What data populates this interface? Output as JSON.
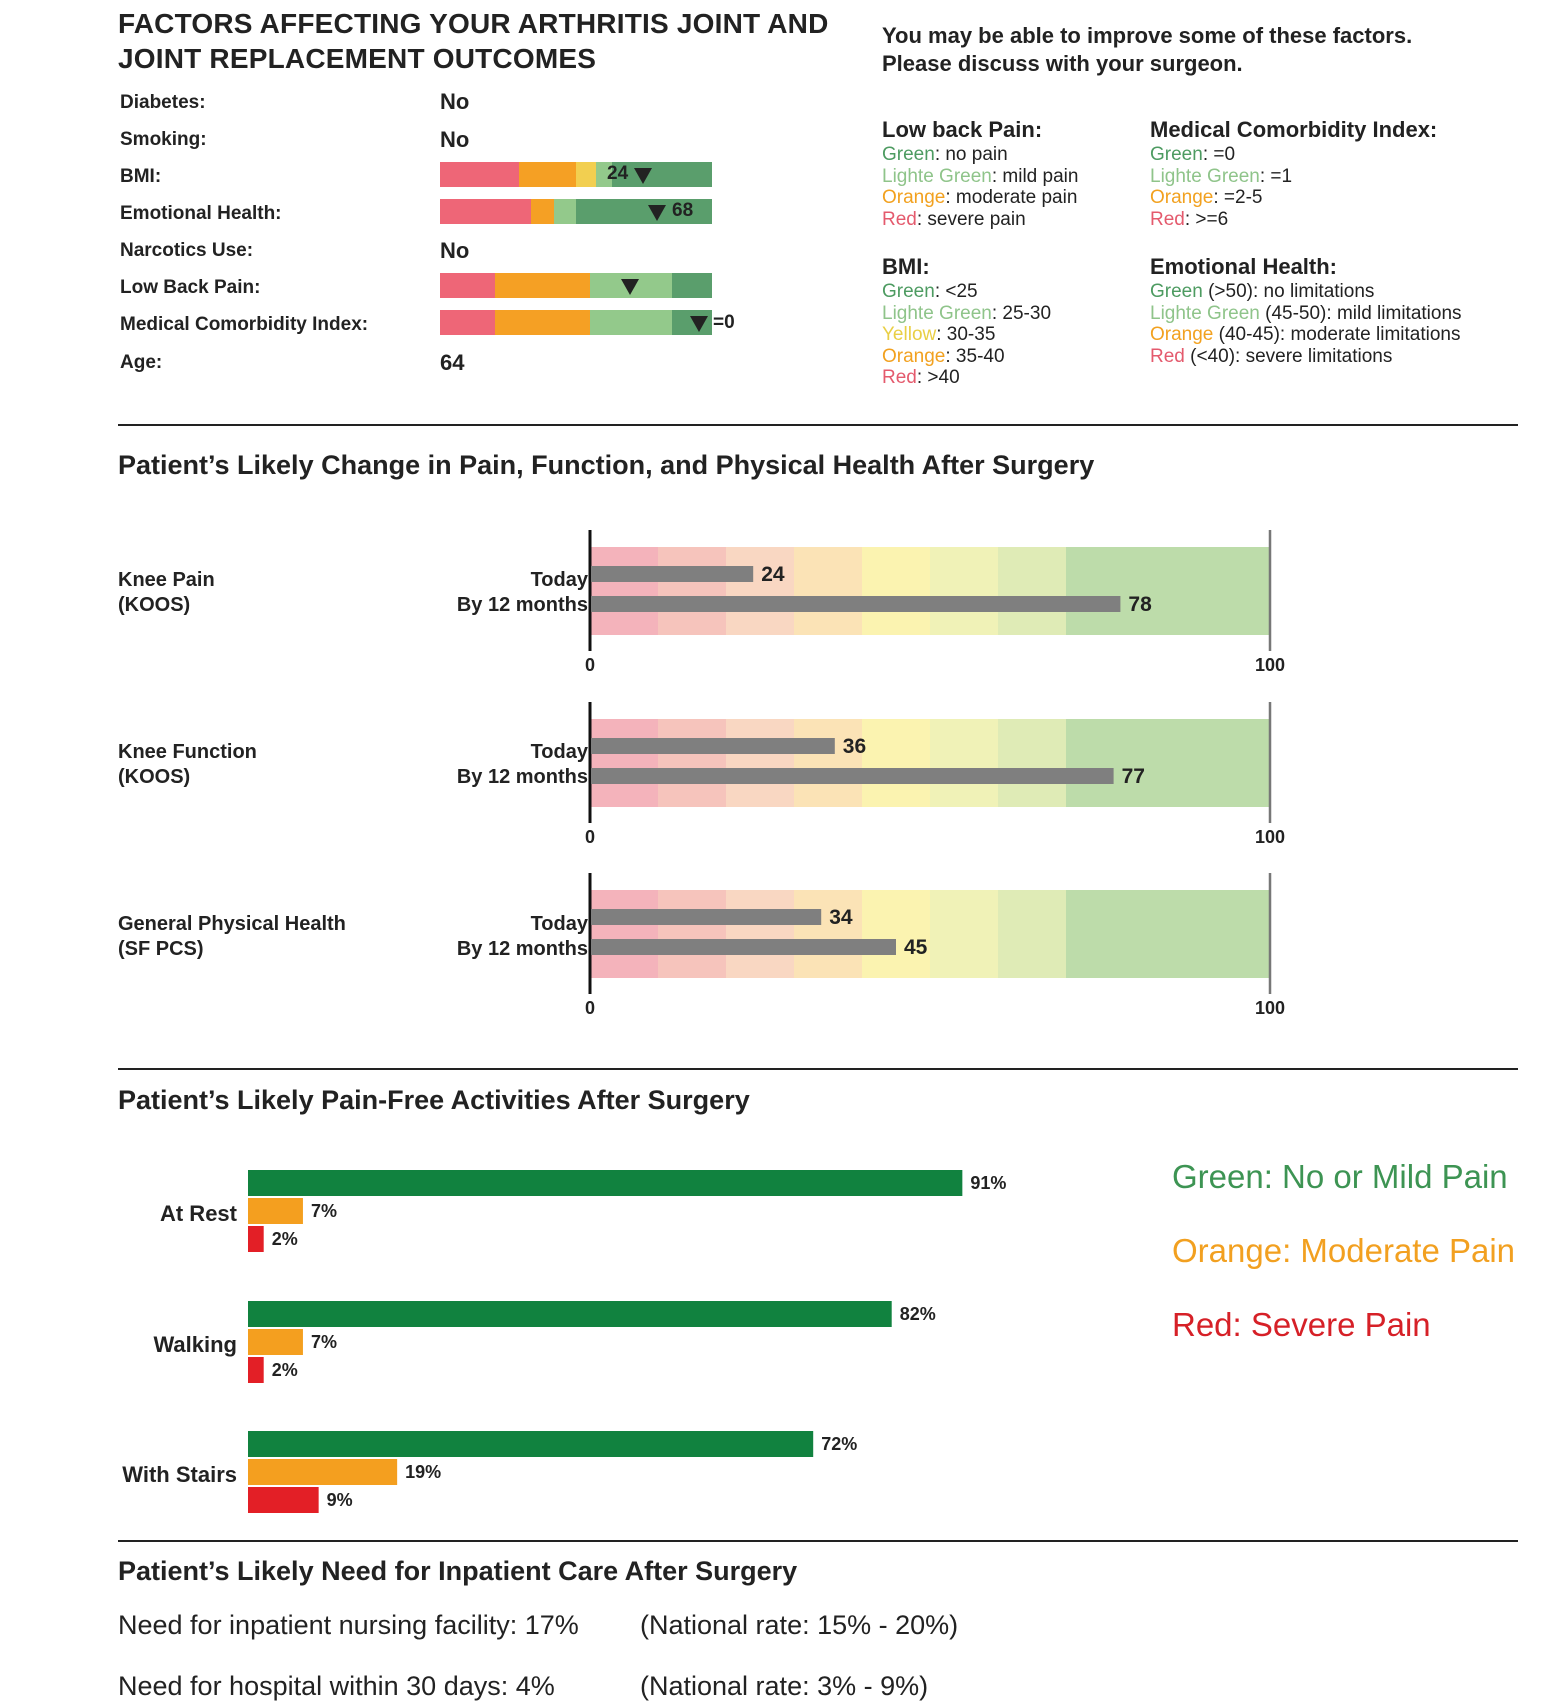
{
  "header": {
    "title_line1": "FACTORS AFFECTING YOUR ARTHRITIS JOINT AND",
    "title_line2": "JOINT REPLACEMENT OUTCOMES",
    "note_line1": "You may be able to improve some of these factors.",
    "note_line2": "Please discuss with your surgeon."
  },
  "factors": {
    "diabetes": {
      "label": "Diabetes:",
      "value": "No"
    },
    "smoking": {
      "label": "Smoking:",
      "value": "No"
    },
    "bmi": {
      "label": "BMI:",
      "value": "24"
    },
    "emotional": {
      "label": "Emotional Health:",
      "value": "68"
    },
    "narcotics": {
      "label": "Narcotics Use:",
      "value": "No"
    },
    "low_back": {
      "label": "Low Back Pain:"
    },
    "comorbidity": {
      "label": "Medical Comorbidity Index:",
      "value": "=0"
    },
    "age": {
      "label": "Age:",
      "value": "64"
    }
  },
  "colors": {
    "red": "#ee6677",
    "orange": "#f5a024",
    "yellow": "#f2cf50",
    "light_green": "#93c98b",
    "green": "#5a9e6c",
    "legend_green": "#4d9b61",
    "legend_light_green": "#8fc48a",
    "legend_yellow": "#e9cf45",
    "legend_orange": "#f2a11f",
    "legend_red": "#e45a6d",
    "bar_grey": "#7f7f7f",
    "act_green": "#11823f",
    "act_orange": "#f49f1f",
    "act_red": "#e31f26",
    "act_legend_green": "#3d9453",
    "act_legend_orange": "#f2a020",
    "act_legend_red": "#d62027"
  },
  "legends": {
    "low_back": {
      "title": "Low back Pain:",
      "items": [
        {
          "key": "Green",
          "text": ": no pain"
        },
        {
          "key": "Lighte Green",
          "text": ": mild pain"
        },
        {
          "key": "Orange",
          "text": ": moderate pain"
        },
        {
          "key": "Red",
          "text": ": severe pain"
        }
      ]
    },
    "comorbidity": {
      "title": "Medical Comorbidity Index:",
      "items": [
        {
          "key": "Green",
          "text": ": =0"
        },
        {
          "key": "Lighte Green",
          "text": ": =1"
        },
        {
          "key": "Orange",
          "text": ": =2-5"
        },
        {
          "key": "Red",
          "text": ": >=6"
        }
      ]
    },
    "bmi": {
      "title": "BMI:",
      "items": [
        {
          "key": "Green",
          "text": ": <25"
        },
        {
          "key": "Lighte Green",
          "text": ": 25-30"
        },
        {
          "key": "Yellow",
          "text": ": 30-35"
        },
        {
          "key": "Orange",
          "text": ": 35-40"
        },
        {
          "key": "Red",
          "text": ": >40"
        }
      ]
    },
    "emotional": {
      "title": "Emotional Health:",
      "items": [
        {
          "key": "Green",
          "text": " (>50): no limitations"
        },
        {
          "key": "Lighte Green",
          "text": " (45-50): mild limitations"
        },
        {
          "key": "Orange",
          "text": " (40-45): moderate limitations"
        },
        {
          "key": "Red",
          "text": " (<40): severe limitations"
        }
      ]
    }
  },
  "outcomes": {
    "title": "Patient’s Likely Change in Pain, Function, and Physical Health After Surgery",
    "row_today": "Today",
    "row_12m": "By 12 months",
    "axis_min_label": "0",
    "axis_max_label": "100",
    "band_colors": [
      "#f4b3bb",
      "#f6c4bc",
      "#f9d7c2",
      "#fbe3b6",
      "#fbf3b0",
      "#f0f2b7",
      "#dfebb6",
      "#bddcaa"
    ]
  },
  "activities": {
    "title": "Patient’s Likely Pain-Free Activities After Surgery",
    "legend_green": "Green: No or Mild Pain",
    "legend_orange": "Orange: Moderate Pain",
    "legend_red": "Red: Severe Pain"
  },
  "inpatient": {
    "title": "Patient’s Likely Need for Inpatient Care After Surgery",
    "nursing_label": "Need for inpatient nursing facility: 17%",
    "nursing_rate": "(National rate: 15% - 20%)",
    "hospital_label": "Need for hospital within 30 days:  4%",
    "hospital_rate": "(National rate: 3% - 9%)"
  },
  "chart_data": [
    {
      "type": "bar",
      "title": "Knee Pain (KOOS)",
      "categories": [
        "Today",
        "By 12 months"
      ],
      "values": [
        24,
        78
      ],
      "xlim": [
        0,
        100
      ]
    },
    {
      "type": "bar",
      "title": "Knee Function (KOOS)",
      "categories": [
        "Today",
        "By 12 months"
      ],
      "values": [
        36,
        77
      ],
      "xlim": [
        0,
        100
      ]
    },
    {
      "type": "bar",
      "title": "General Physical Health (SF PCS)",
      "categories": [
        "Today",
        "By 12 months"
      ],
      "values": [
        34,
        45
      ],
      "xlim": [
        0,
        100
      ]
    },
    {
      "type": "bar",
      "title": "Patient’s Likely Pain-Free Activities After Surgery",
      "categories": [
        "At Rest",
        "Walking",
        "With Stairs"
      ],
      "series": [
        {
          "name": "Green: No or Mild Pain",
          "values": [
            91,
            82,
            72
          ]
        },
        {
          "name": "Orange: Moderate Pain",
          "values": [
            7,
            7,
            19
          ]
        },
        {
          "name": "Red: Severe Pain",
          "values": [
            2,
            2,
            9
          ]
        }
      ],
      "unit": "%"
    }
  ]
}
